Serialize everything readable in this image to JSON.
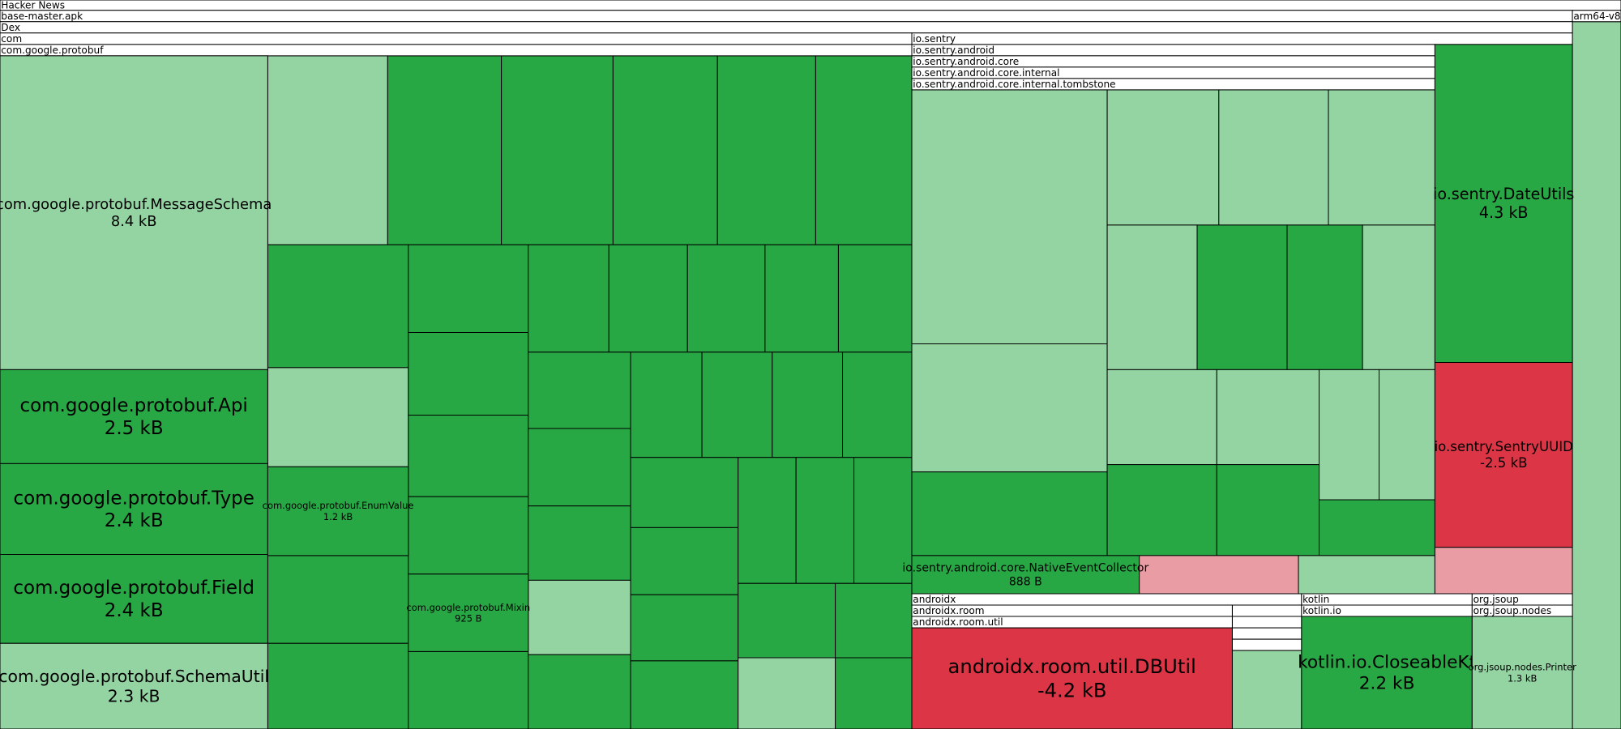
{
  "headers": [
    "Hacker News",
    "base-master.apk",
    "arm64-v8a",
    "Dex",
    "com",
    "io.sentry",
    "com.google.protobuf",
    "io.sentry.android",
    "io.sentry.android.core",
    "io.sentry.android.core.internal",
    "io.sentry.android.core.internal.tombstone",
    "androidx",
    "androidx.room",
    "androidx.room.util",
    "kotlin",
    "kotlin.io",
    "org.jsoup",
    "org.jsoup.nodes"
  ],
  "nodes": [
    {
      "label": "com.google.protobuf.MessageSchema",
      "size": "8.4 kB"
    },
    {
      "label": "com.google.protobuf.Api",
      "size": "2.5 kB"
    },
    {
      "label": "com.google.protobuf.Type",
      "size": "2.4 kB"
    },
    {
      "label": "com.google.protobuf.Field",
      "size": "2.4 kB"
    },
    {
      "label": "com.google.protobuf.SchemaUtil",
      "size": "2.3 kB"
    },
    {
      "label": "com.google.protobuf.EnumValue",
      "size": "1.2 kB"
    },
    {
      "label": "com.google.protobuf.Mixin",
      "size": "925 B"
    },
    {
      "label": "io.sentry.DateUtils",
      "size": "4.3 kB"
    },
    {
      "label": "io.sentry.SentryUUID",
      "size": "-2.5 kB"
    },
    {
      "label": "io.sentry.android.core.NativeEventCollector",
      "size": "888 B"
    },
    {
      "label": "androidx.room.util.DBUtil",
      "size": "-4.2 kB"
    },
    {
      "label": "kotlin.io.CloseableKt",
      "size": "2.2 kB"
    },
    {
      "label": "org.jsoup.nodes.Printer",
      "size": "1.3 kB"
    }
  ]
}
